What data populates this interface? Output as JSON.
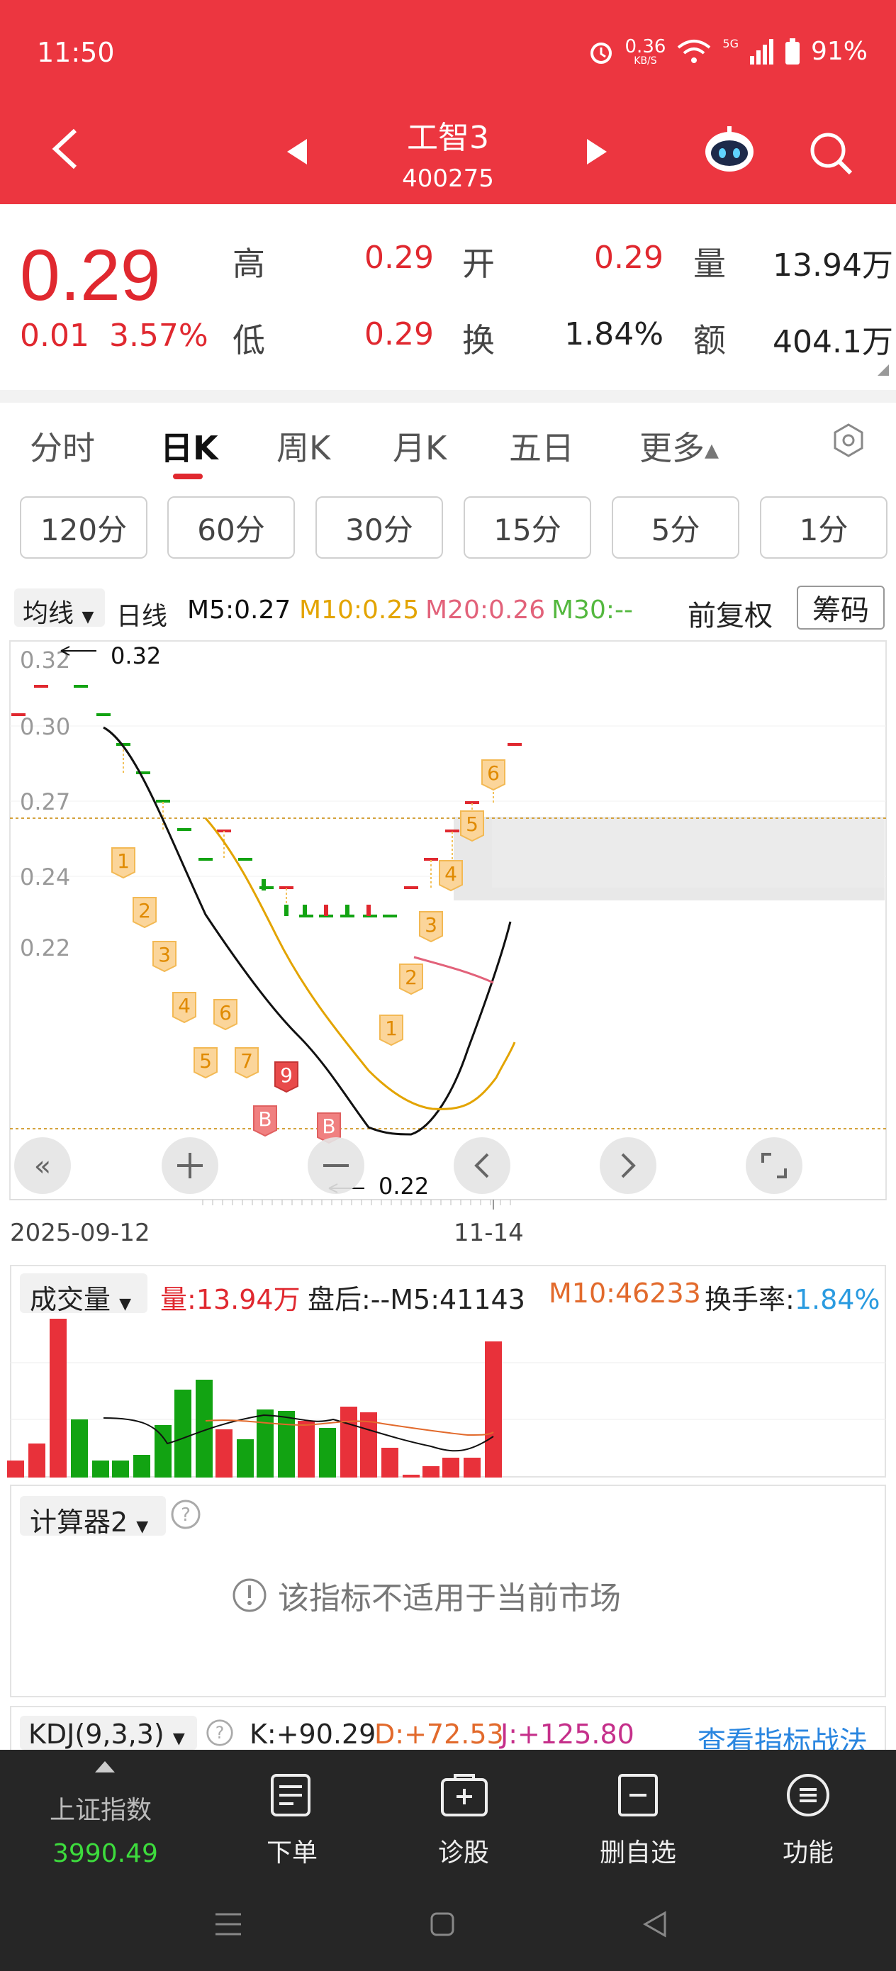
{
  "status": {
    "time": "11:50",
    "net_speed": "0.36",
    "net_unit": "KB/S",
    "signal": "5G",
    "battery": "91%"
  },
  "header": {
    "title": "工智3",
    "code": "400275"
  },
  "quote": {
    "price": "0.29",
    "change": "0.01",
    "change_pct": "3.57%",
    "high_label": "高",
    "high": "0.29",
    "low_label": "低",
    "low": "0.29",
    "open_label": "开",
    "open": "0.29",
    "turnover_label": "换",
    "turnover": "1.84%",
    "volume_label": "量",
    "volume": "13.94万",
    "amount_label": "额",
    "amount": "404.1万"
  },
  "tabs": [
    "分时",
    "日K",
    "周K",
    "月K",
    "五日",
    "更多"
  ],
  "minute_buttons": [
    "120分",
    "60分",
    "30分",
    "15分",
    "5分",
    "1分"
  ],
  "ma_row": {
    "dropdown": "均线",
    "period": "日线",
    "m5": "M5:0.27",
    "m10": "M10:0.25",
    "m20": "M20:0.26",
    "m30": "M30:--",
    "adjust": "前复权",
    "chip": "筹码"
  },
  "kline": {
    "y_ticks": [
      "0.32",
      "0.30",
      "0.27",
      "0.24",
      "0.22"
    ],
    "max_label": "0.32",
    "min_label": "0.22",
    "x_start": "2025-09-12",
    "x_end": "11-14",
    "signals_down": [
      "1",
      "2",
      "3",
      "4",
      "5",
      "6",
      "7"
    ],
    "signals_up": [
      "1",
      "2",
      "3",
      "4",
      "5",
      "6"
    ],
    "marker_nine": "9",
    "marker_b": "B",
    "colors": {
      "up": "#e0282f",
      "down": "#12a312",
      "m5": "#111111",
      "m10": "#e3a400",
      "m20": "#e2627a",
      "m30": "#54b83f"
    }
  },
  "volume": {
    "dropdown": "成交量",
    "vol": "量:13.94万",
    "after": "盘后:--",
    "m5": "M5:41143",
    "m10": "M10:46233",
    "turnover_label": "换手率:",
    "turnover": "1.84%"
  },
  "calc": {
    "dropdown": "计算器2",
    "notice": "该指标不适用于当前市场"
  },
  "kdj": {
    "dropdown": "KDJ(9,3,3)",
    "k": "K:+90.29",
    "d": "D:+72.53",
    "j": "J:+125.80",
    "link": "查看指标战法"
  },
  "bottom": {
    "index_name": "上证指数",
    "index_value": "3990.49",
    "items": [
      "下单",
      "诊股",
      "删自选",
      "功能"
    ]
  }
}
